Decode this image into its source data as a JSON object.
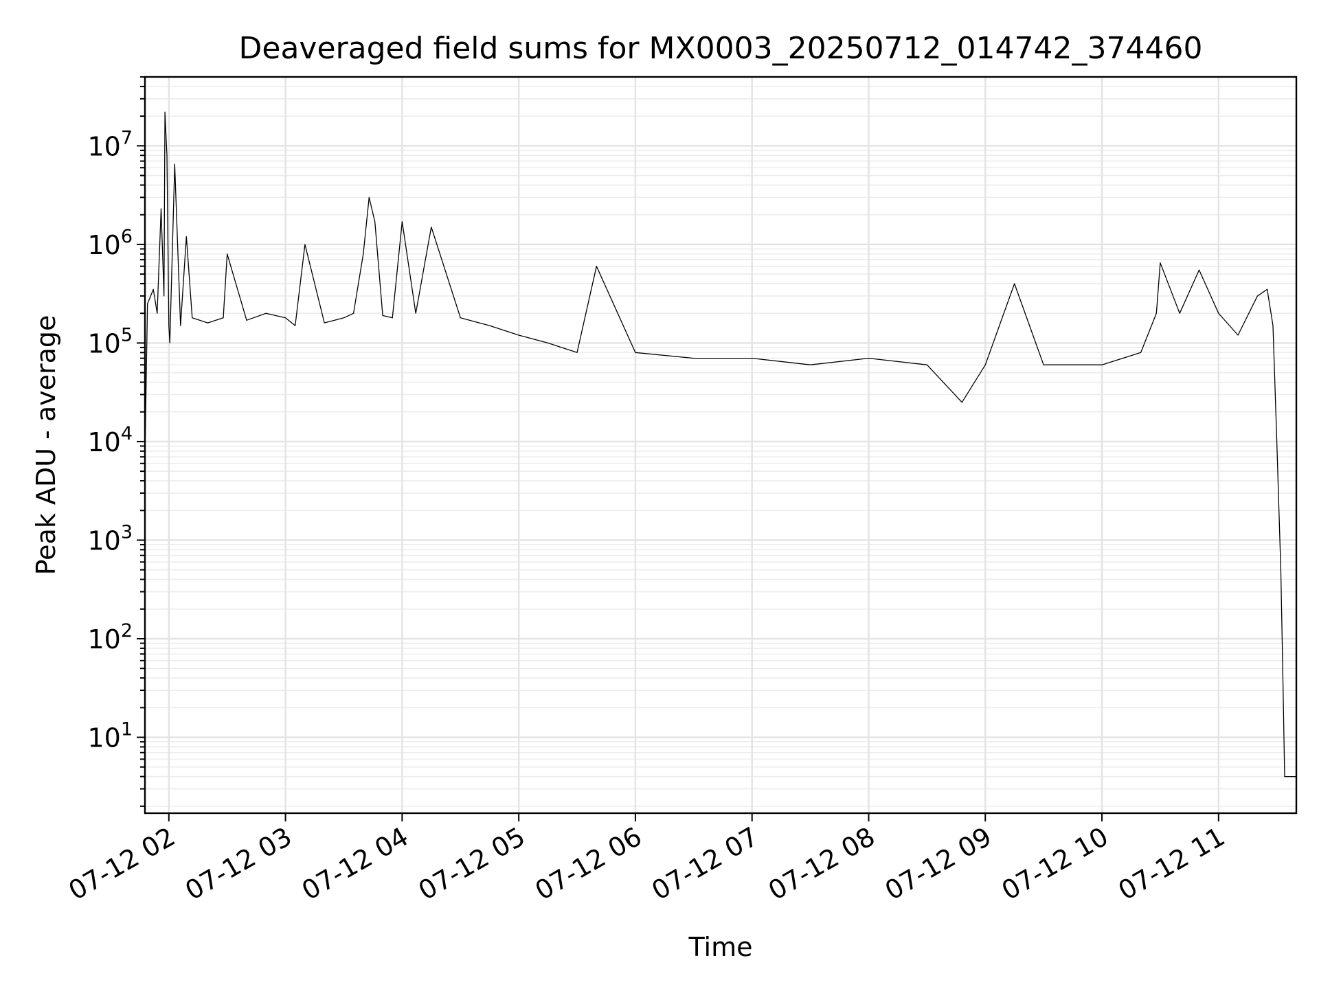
{
  "chart_data": {
    "type": "line",
    "title": "Deaveraged field sums for MX0003_20250712_014742_374460",
    "xlabel": "Time",
    "ylabel": "Peak ADU - average",
    "xscale": "time",
    "yscale": "log",
    "xlim": [
      "2025-07-12 01:47:42",
      "2025-07-12 11:40:00"
    ],
    "ylim": [
      1.7,
      50000000
    ],
    "xticks": [
      {
        "value": "2025-07-12 02:00:00",
        "label": "07-12 02"
      },
      {
        "value": "2025-07-12 03:00:00",
        "label": "07-12 03"
      },
      {
        "value": "2025-07-12 04:00:00",
        "label": "07-12 04"
      },
      {
        "value": "2025-07-12 05:00:00",
        "label": "07-12 05"
      },
      {
        "value": "2025-07-12 06:00:00",
        "label": "07-12 06"
      },
      {
        "value": "2025-07-12 07:00:00",
        "label": "07-12 07"
      },
      {
        "value": "2025-07-12 08:00:00",
        "label": "07-12 08"
      },
      {
        "value": "2025-07-12 09:00:00",
        "label": "07-12 09"
      },
      {
        "value": "2025-07-12 10:00:00",
        "label": "07-12 10"
      },
      {
        "value": "2025-07-12 11:00:00",
        "label": "07-12 11"
      }
    ],
    "yticks": [
      {
        "value": 10,
        "base": "10",
        "exp": "1"
      },
      {
        "value": 100,
        "base": "10",
        "exp": "2"
      },
      {
        "value": 1000,
        "base": "10",
        "exp": "3"
      },
      {
        "value": 10000,
        "base": "10",
        "exp": "4"
      },
      {
        "value": 100000,
        "base": "10",
        "exp": "5"
      },
      {
        "value": 1000000,
        "base": "10",
        "exp": "6"
      },
      {
        "value": 10000000,
        "base": "10",
        "exp": "7"
      }
    ],
    "grid": true,
    "minor_grid": true,
    "legend": "none",
    "line_color": "#000000",
    "series": [
      {
        "x": [
          "2025-07-12 01:47:42",
          "2025-07-12 01:49:00",
          "2025-07-12 01:52:00",
          "2025-07-12 01:54:00",
          "2025-07-12 01:56:00",
          "2025-07-12 01:57:30",
          "2025-07-12 01:58:00",
          "2025-07-12 01:59:00",
          "2025-07-12 02:00:00",
          "2025-07-12 02:00:30",
          "2025-07-12 02:03:00",
          "2025-07-12 02:06:00",
          "2025-07-12 02:09:00",
          "2025-07-12 02:12:00",
          "2025-07-12 02:20:00",
          "2025-07-12 02:28:00",
          "2025-07-12 02:30:00",
          "2025-07-12 02:40:00",
          "2025-07-12 02:50:00",
          "2025-07-12 03:00:00",
          "2025-07-12 03:05:00",
          "2025-07-12 03:10:00",
          "2025-07-12 03:20:00",
          "2025-07-12 03:30:00",
          "2025-07-12 03:35:00",
          "2025-07-12 03:40:00",
          "2025-07-12 03:43:00",
          "2025-07-12 03:46:00",
          "2025-07-12 03:50:00",
          "2025-07-12 03:55:00",
          "2025-07-12 04:00:00",
          "2025-07-12 04:07:00",
          "2025-07-12 04:15:00",
          "2025-07-12 04:30:00",
          "2025-07-12 04:45:00",
          "2025-07-12 05:00:00",
          "2025-07-12 05:15:00",
          "2025-07-12 05:30:00",
          "2025-07-12 05:40:00",
          "2025-07-12 06:00:00",
          "2025-07-12 06:30:00",
          "2025-07-12 07:00:00",
          "2025-07-12 07:30:00",
          "2025-07-12 08:00:00",
          "2025-07-12 08:30:00",
          "2025-07-12 08:48:00",
          "2025-07-12 09:00:00",
          "2025-07-12 09:15:00",
          "2025-07-12 09:30:00",
          "2025-07-12 10:00:00",
          "2025-07-12 10:20:00",
          "2025-07-12 10:28:00",
          "2025-07-12 10:30:00",
          "2025-07-12 10:40:00",
          "2025-07-12 10:50:00",
          "2025-07-12 11:00:00",
          "2025-07-12 11:10:00",
          "2025-07-12 11:20:00",
          "2025-07-12 11:25:00",
          "2025-07-12 11:28:00",
          "2025-07-12 11:30:00",
          "2025-07-12 11:32:00",
          "2025-07-12 11:33:00",
          "2025-07-12 11:34:00",
          "2025-07-12 11:36:00",
          "2025-07-12 11:40:00"
        ],
        "y": [
          7000,
          250000,
          350000,
          200000,
          2300000,
          300000,
          22000000,
          8000000,
          150000,
          100000,
          6500000,
          150000,
          1200000,
          180000,
          160000,
          180000,
          800000,
          170000,
          200000,
          180000,
          150000,
          1000000,
          160000,
          180000,
          200000,
          800000,
          3000000,
          1700000,
          190000,
          180000,
          1700000,
          200000,
          1500000,
          180000,
          150000,
          120000,
          100000,
          80000,
          600000,
          80000,
          70000,
          70000,
          60000,
          70000,
          60000,
          25000,
          60000,
          400000,
          60000,
          60000,
          80000,
          200000,
          650000,
          200000,
          550000,
          200000,
          120000,
          300000,
          350000,
          150000,
          9500,
          500,
          50,
          4,
          4,
          4
        ]
      }
    ]
  }
}
